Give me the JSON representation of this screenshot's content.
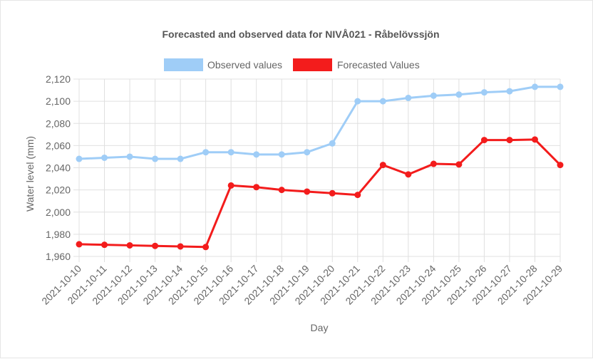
{
  "chart_data": {
    "type": "line",
    "title": "Forecasted and observed data for NIVÅ021 - Råbelövssjön",
    "xlabel": "Day",
    "ylabel": "Water level (mm)",
    "ylim": [
      1960,
      2120
    ],
    "yticks": [
      1960,
      1980,
      2000,
      2020,
      2040,
      2060,
      2080,
      2100,
      2120
    ],
    "ytick_labels": [
      "1,960",
      "1,980",
      "2,000",
      "2,020",
      "2,040",
      "2,060",
      "2,080",
      "2,100",
      "2,120"
    ],
    "grid": true,
    "legend_position": "top",
    "categories": [
      "2021-10-10",
      "2021-10-11",
      "2021-10-12",
      "2021-10-13",
      "2021-10-14",
      "2021-10-15",
      "2021-10-16",
      "2021-10-17",
      "2021-10-18",
      "2021-10-19",
      "2021-10-20",
      "2021-10-21",
      "2021-10-22",
      "2021-10-23",
      "2021-10-24",
      "2021-10-25",
      "2021-10-26",
      "2021-10-27",
      "2021-10-28",
      "2021-10-29"
    ],
    "series": [
      {
        "name": "Observed values",
        "color": "#9fcdf7",
        "values": [
          2048,
          2049,
          2050,
          2048,
          2048,
          2054,
          2054,
          2052,
          2052,
          2054,
          2062,
          2100,
          2100,
          2103,
          2105,
          2106,
          2108,
          2109,
          2113,
          2113
        ]
      },
      {
        "name": "Forecasted Values",
        "color": "#f31c1c",
        "values": [
          1971,
          1970.5,
          1970,
          1969.5,
          1969,
          1968.5,
          2024,
          2022.5,
          2020,
          2018.5,
          2017,
          2015.5,
          2042.5,
          2034,
          2043.5,
          2043,
          2065,
          2065,
          2065.5,
          2042.5
        ]
      }
    ]
  }
}
